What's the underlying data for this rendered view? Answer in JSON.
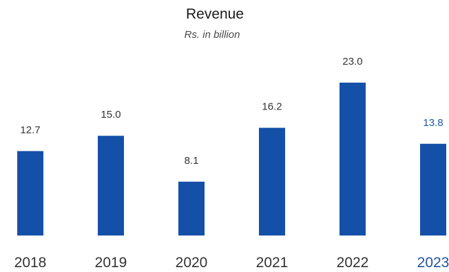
{
  "chart_data": {
    "type": "bar",
    "title": "Revenue",
    "subtitle": "Rs. in billion",
    "categories": [
      "2018",
      "2019",
      "2020",
      "2021",
      "2022",
      "2023"
    ],
    "values": [
      12.7,
      15.0,
      8.1,
      16.2,
      23.0,
      13.8
    ],
    "value_labels": [
      "12.7",
      "15.0",
      "8.1",
      "16.2",
      "23.0",
      "13.8"
    ],
    "highlight_category": "2023",
    "xlabel": "",
    "ylabel": "",
    "ylim": [
      0,
      23.0
    ],
    "grid": false,
    "legend": "none",
    "colors": {
      "bar": "#1450a8",
      "highlight_text": "#1f55a5",
      "text": "#333333"
    }
  }
}
